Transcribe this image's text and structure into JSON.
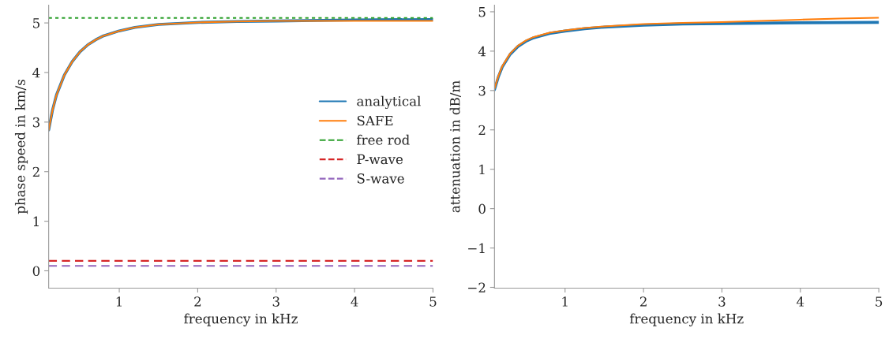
{
  "chart_data": [
    {
      "type": "line",
      "xlabel": "frequency in kHz",
      "ylabel": "phase speed in km/s",
      "xlim": [
        0.1,
        5
      ],
      "xticks": [
        1,
        2,
        3,
        4,
        5
      ],
      "ylim": [
        -0.35,
        5.36
      ],
      "yticks": [
        0,
        1,
        2,
        3,
        4,
        5
      ],
      "legend": "right",
      "grid": false,
      "series": [
        {
          "name": "analytical",
          "color": "#1f77b4",
          "line_style": "solid",
          "x": [
            0.1,
            0.15,
            0.2,
            0.3,
            0.4,
            0.5,
            0.6,
            0.7,
            0.8,
            1.0,
            1.2,
            1.5,
            2,
            2.5,
            3,
            4,
            5
          ],
          "values": [
            2.84,
            3.25,
            3.55,
            3.95,
            4.22,
            4.42,
            4.56,
            4.66,
            4.74,
            4.84,
            4.91,
            4.97,
            5.01,
            5.03,
            5.04,
            5.06,
            5.07
          ]
        },
        {
          "name": "SAFE",
          "color": "#ff7f0e",
          "line_style": "solid",
          "x": [
            0.1,
            0.15,
            0.2,
            0.3,
            0.4,
            0.5,
            0.6,
            0.7,
            0.8,
            1.0,
            1.2,
            1.5,
            2,
            2.5,
            3,
            4,
            5
          ],
          "values": [
            2.84,
            3.25,
            3.55,
            3.95,
            4.22,
            4.42,
            4.56,
            4.66,
            4.74,
            4.84,
            4.91,
            4.97,
            5.01,
            5.03,
            5.04,
            5.04,
            5.04
          ]
        },
        {
          "name": "free rod",
          "color": "#2ca02c",
          "line_style": "dotted",
          "x": [
            0.1,
            5
          ],
          "values": [
            5.1,
            5.1
          ]
        },
        {
          "name": "P-wave",
          "color": "#d62728",
          "line_style": "dashed",
          "x": [
            0.1,
            5
          ],
          "values": [
            0.2,
            0.2
          ]
        },
        {
          "name": "S-wave",
          "color": "#9467bd",
          "line_style": "dashed",
          "x": [
            0.1,
            5
          ],
          "values": [
            0.1,
            0.1
          ]
        }
      ]
    },
    {
      "type": "line",
      "xlabel": "frequency in kHz",
      "ylabel": "attenuation in dB/m",
      "xlim": [
        0.1,
        5
      ],
      "xticks": [
        1,
        2,
        3,
        4,
        5
      ],
      "ylim": [
        -2.02,
        5.17
      ],
      "yticks": [
        {
          "value": -2,
          "label": "−2"
        },
        {
          "value": -1,
          "label": "−1"
        },
        0,
        1,
        2,
        3,
        4,
        5
      ],
      "grid": false,
      "series": [
        {
          "color": "#1f77b4",
          "line_style": "solid",
          "x": [
            0.1,
            0.15,
            0.2,
            0.3,
            0.4,
            0.5,
            0.6,
            0.8,
            1.0,
            1.25,
            1.5,
            2,
            2.5,
            3,
            4,
            5
          ],
          "values": [
            3.02,
            3.35,
            3.6,
            3.92,
            4.12,
            4.25,
            4.34,
            4.45,
            4.51,
            4.57,
            4.61,
            4.66,
            4.69,
            4.7,
            4.72,
            4.73
          ]
        },
        {
          "color": "#ff7f0e",
          "line_style": "solid",
          "x": [
            0.1,
            0.15,
            0.2,
            0.3,
            0.4,
            0.5,
            0.6,
            0.8,
            1.0,
            1.25,
            1.5,
            2,
            2.5,
            3,
            3.5,
            4,
            4.5,
            5
          ],
          "values": [
            3.05,
            3.37,
            3.62,
            3.94,
            4.14,
            4.27,
            4.36,
            4.47,
            4.53,
            4.59,
            4.63,
            4.69,
            4.72,
            4.74,
            4.77,
            4.8,
            4.83,
            4.85
          ]
        }
      ]
    }
  ]
}
